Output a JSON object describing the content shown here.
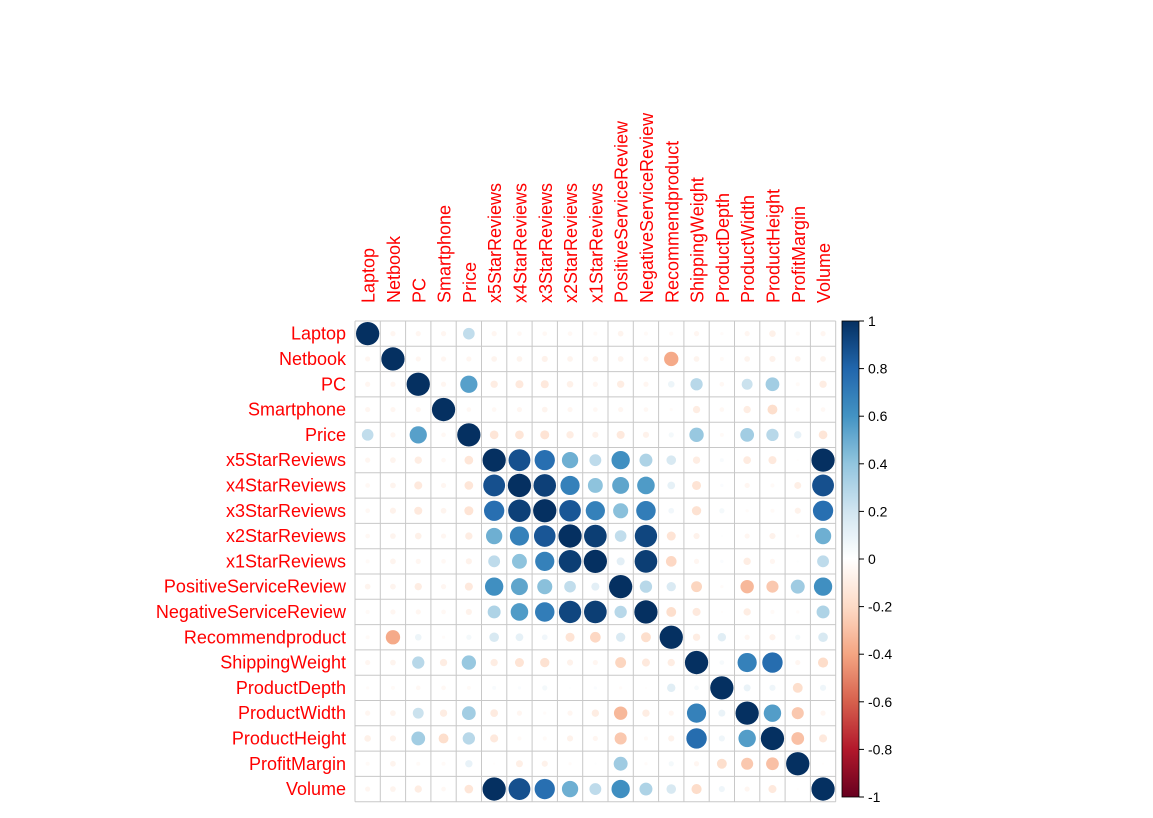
{
  "chart_data": {
    "type": "heatmap",
    "style": "corrplot-circle",
    "title": "",
    "variables": [
      "Laptop",
      "Netbook",
      "PC",
      "Smartphone",
      "Price",
      "x5StarReviews",
      "x4StarReviews",
      "x3StarReviews",
      "x2StarReviews",
      "x1StarReviews",
      "PositiveServiceReview",
      "NegativeServiceReview",
      "Recommendproduct",
      "ShippingWeight",
      "ProductDepth",
      "ProductWidth",
      "ProductHeight",
      "ProfitMargin",
      "Volume"
    ],
    "matrix": [
      [
        1,
        -0.05,
        -0.05,
        -0.05,
        0.25,
        -0.05,
        -0.04,
        -0.04,
        -0.04,
        -0.03,
        -0.06,
        -0.03,
        -0.03,
        -0.05,
        -0.02,
        -0.05,
        -0.08,
        -0.03,
        -0.05
      ],
      [
        -0.05,
        1,
        -0.05,
        -0.05,
        -0.05,
        -0.06,
        -0.06,
        -0.07,
        -0.06,
        -0.06,
        -0.06,
        -0.05,
        -0.38,
        -0.06,
        -0.03,
        -0.06,
        -0.07,
        -0.06,
        -0.06
      ],
      [
        -0.05,
        -0.05,
        1,
        -0.05,
        0.55,
        -0.1,
        -0.12,
        -0.12,
        -0.08,
        -0.05,
        -0.1,
        -0.05,
        0.08,
        0.28,
        -0.04,
        0.22,
        0.35,
        -0.03,
        -0.1
      ],
      [
        -0.05,
        -0.05,
        -0.05,
        1,
        -0.04,
        -0.04,
        -0.05,
        -0.06,
        -0.05,
        -0.04,
        -0.05,
        -0.04,
        -0.02,
        -0.1,
        -0.04,
        -0.1,
        -0.18,
        -0.03,
        -0.04
      ],
      [
        0.25,
        -0.05,
        0.55,
        -0.04,
        1,
        -0.14,
        -0.14,
        -0.15,
        -0.1,
        -0.07,
        -0.12,
        -0.07,
        0.05,
        0.38,
        -0.03,
        0.35,
        0.28,
        0.1,
        -0.14
      ],
      [
        -0.05,
        -0.06,
        -0.1,
        -0.04,
        -0.14,
        1,
        0.88,
        0.76,
        0.49,
        0.26,
        0.62,
        0.31,
        0.17,
        -0.1,
        0.03,
        -0.11,
        -0.12,
        -0.01,
        1
      ],
      [
        -0.04,
        -0.06,
        -0.12,
        -0.05,
        -0.14,
        0.88,
        1,
        0.94,
        0.68,
        0.41,
        0.53,
        0.57,
        0.11,
        -0.15,
        0.02,
        -0.05,
        -0.03,
        -0.09,
        0.88
      ],
      [
        -0.04,
        -0.07,
        -0.12,
        -0.06,
        -0.15,
        0.76,
        0.94,
        1,
        0.86,
        0.68,
        0.42,
        0.7,
        0.06,
        -0.16,
        0.05,
        -0.02,
        -0.03,
        -0.07,
        0.76
      ],
      [
        -0.04,
        -0.06,
        -0.08,
        -0.05,
        -0.1,
        0.49,
        0.68,
        0.86,
        1,
        0.95,
        0.25,
        0.92,
        -0.15,
        -0.07,
        0.01,
        -0.05,
        -0.07,
        -0.02,
        0.49
      ],
      [
        -0.03,
        -0.06,
        -0.05,
        -0.04,
        -0.07,
        0.26,
        0.41,
        0.68,
        0.95,
        1,
        0.12,
        0.95,
        -0.21,
        -0.05,
        0.02,
        -0.1,
        -0.05,
        0.01,
        0.26
      ],
      [
        -0.06,
        -0.06,
        -0.1,
        -0.05,
        -0.12,
        0.62,
        0.53,
        0.42,
        0.25,
        0.12,
        1,
        0.28,
        0.16,
        -0.22,
        -0.02,
        -0.33,
        -0.27,
        0.36,
        0.62
      ],
      [
        -0.03,
        -0.05,
        -0.05,
        -0.04,
        -0.07,
        0.31,
        0.57,
        0.7,
        0.92,
        0.95,
        0.28,
        1,
        -0.18,
        -0.12,
        -0.01,
        -0.1,
        -0.03,
        -0.02,
        0.31
      ],
      [
        -0.03,
        -0.38,
        0.08,
        -0.02,
        0.05,
        0.17,
        0.11,
        0.06,
        -0.15,
        -0.21,
        0.16,
        -0.18,
        1,
        -0.1,
        0.13,
        -0.05,
        -0.07,
        0.05,
        0.17
      ],
      [
        -0.05,
        -0.06,
        0.28,
        -0.1,
        0.38,
        -0.1,
        -0.15,
        -0.16,
        -0.07,
        -0.05,
        -0.22,
        -0.12,
        -0.1,
        1,
        0.04,
        0.68,
        0.77,
        -0.05,
        -0.19
      ],
      [
        -0.02,
        -0.03,
        -0.04,
        -0.04,
        -0.03,
        0.03,
        0.02,
        0.05,
        0.01,
        0.02,
        -0.02,
        -0.01,
        0.13,
        0.04,
        1,
        0.09,
        0.07,
        -0.18,
        0.07
      ],
      [
        -0.05,
        -0.06,
        0.22,
        -0.1,
        0.35,
        -0.11,
        -0.05,
        -0.02,
        -0.05,
        -0.1,
        -0.33,
        -0.1,
        -0.05,
        0.68,
        0.09,
        1,
        0.56,
        -0.27,
        -0.05
      ],
      [
        -0.08,
        -0.07,
        0.35,
        -0.18,
        0.28,
        -0.12,
        -0.03,
        -0.03,
        -0.07,
        -0.05,
        -0.27,
        -0.03,
        -0.07,
        0.77,
        0.07,
        0.56,
        1,
        -0.3,
        -0.12
      ],
      [
        -0.03,
        -0.06,
        -0.03,
        -0.03,
        0.1,
        -0.01,
        -0.09,
        -0.07,
        -0.02,
        0.01,
        0.36,
        -0.02,
        0.05,
        -0.05,
        -0.18,
        -0.27,
        -0.3,
        1,
        -0.01
      ],
      [
        -0.05,
        -0.06,
        -0.1,
        -0.04,
        -0.14,
        1,
        0.88,
        0.76,
        0.49,
        0.26,
        0.62,
        0.31,
        0.17,
        -0.19,
        0.07,
        -0.05,
        -0.12,
        -0.01,
        1
      ]
    ],
    "color_scale": {
      "min": -1,
      "max": 1,
      "ticks": [
        "1",
        "0.8",
        "0.6",
        "0.4",
        "0.2",
        "0",
        "-0.2",
        "-0.4",
        "-0.6",
        "-0.8",
        "-1"
      ]
    },
    "label_color": "#FF0000",
    "negative_color": "#67001F",
    "neutral_color": "#FFFFFF",
    "positive_color": "#053061",
    "grid": true,
    "legend_position": "right"
  }
}
